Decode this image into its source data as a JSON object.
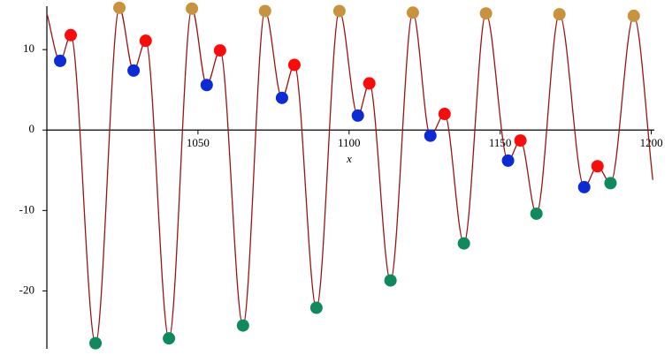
{
  "chart_data": {
    "type": "line",
    "axis_label_x": "x",
    "xlim": [
      1000,
      1201
    ],
    "ylim": [
      -27.2,
      15.4
    ],
    "xticks": [
      1050,
      1100,
      1150,
      1200
    ],
    "yticks": [
      -20,
      -10,
      0,
      10
    ],
    "series": [
      {
        "type": "line",
        "color": "#9a1414",
        "x": [
          1000,
          1004.4,
          1007.9,
          1016.1,
          1024.0,
          1028.7,
          1032.7,
          1040.4,
          1048.0,
          1052.9,
          1057.3,
          1064.9,
          1072.2,
          1077.8,
          1081.9,
          1089.2,
          1096.8,
          1102.9,
          1106.7,
          1113.7,
          1121.1,
          1126.9,
          1131.6,
          1138.0,
          1145.3,
          1152.6,
          1156.7,
          1162.0,
          1169.6,
          1177.8,
          1182.2,
          1186.5,
          1194.2,
          1200.5
        ],
        "values": [
          14.5,
          8.6,
          11.8,
          -26.5,
          15.2,
          7.4,
          11.1,
          -25.9,
          15.1,
          5.6,
          9.9,
          -24.3,
          14.8,
          4.0,
          8.1,
          -22.1,
          14.8,
          1.8,
          5.8,
          -18.7,
          14.6,
          -0.7,
          2.0,
          -14.1,
          14.5,
          -3.8,
          -1.3,
          -10.4,
          14.4,
          -7.1,
          -4.5,
          -6.6,
          14.2,
          -6.2
        ]
      },
      {
        "type": "scatter",
        "color": "#0b2bd6",
        "x": [
          1004.4,
          1028.7,
          1052.9,
          1077.8,
          1102.9,
          1126.9,
          1152.6,
          1177.8
        ],
        "values": [
          8.6,
          7.4,
          5.6,
          4.0,
          1.8,
          -0.7,
          -3.8,
          -7.1
        ]
      },
      {
        "type": "scatter",
        "color": "#ff0a0a",
        "x": [
          1007.9,
          1032.7,
          1057.3,
          1081.9,
          1106.7,
          1131.6,
          1156.7,
          1182.2
        ],
        "values": [
          11.8,
          11.1,
          9.9,
          8.1,
          5.8,
          2.0,
          -1.3,
          -4.5
        ]
      },
      {
        "type": "scatter",
        "color": "#0f8a5c",
        "x": [
          1016.1,
          1040.4,
          1064.9,
          1089.2,
          1113.7,
          1138.0,
          1162.0,
          1186.5
        ],
        "values": [
          -26.5,
          -25.9,
          -24.3,
          -22.1,
          -18.7,
          -14.1,
          -10.4,
          -6.6
        ]
      },
      {
        "type": "scatter",
        "color": "#c9923c",
        "x": [
          1024.0,
          1048.0,
          1072.2,
          1096.8,
          1121.1,
          1145.3,
          1169.6,
          1194.2
        ],
        "values": [
          15.2,
          15.1,
          14.8,
          14.8,
          14.6,
          14.5,
          14.4,
          14.2
        ]
      }
    ]
  }
}
